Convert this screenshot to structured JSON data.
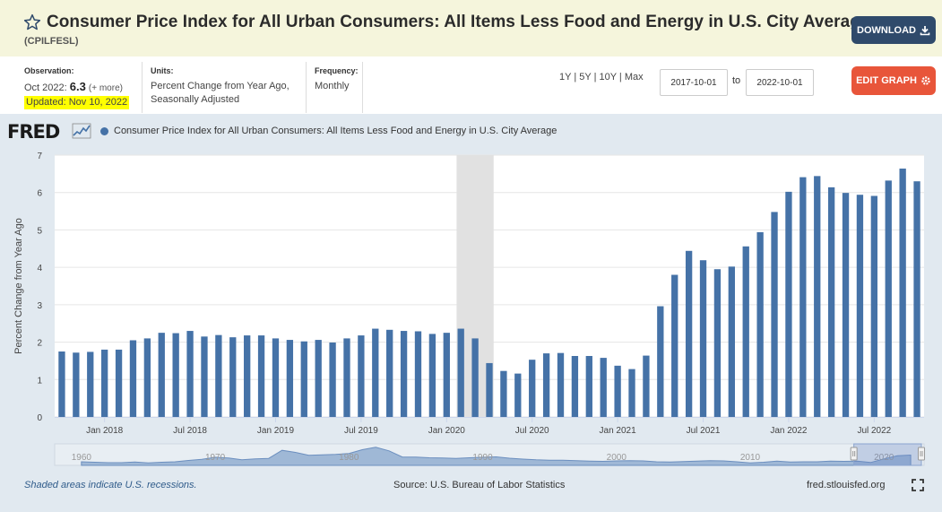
{
  "header": {
    "title": "Consumer Price Index for All Urban Consumers: All Items Less Food and Energy in U.S. City Average",
    "series_id": "(CPILFESL)",
    "download_label": "DOWNLOAD",
    "band_color": "#f5f5dc",
    "download_color": "#2f4a6b"
  },
  "meta": {
    "observation_label": "Observation:",
    "observation_date": "Oct 2022:",
    "observation_value": "6.3",
    "observation_more": "(+ more)",
    "updated": "Updated: Nov 10, 2022",
    "units_label": "Units:",
    "units_line1": "Percent Change from Year Ago,",
    "units_line2": "Seasonally Adjusted",
    "frequency_label": "Frequency:",
    "frequency_value": "Monthly",
    "ranges": [
      "1Y",
      "5Y",
      "10Y",
      "Max"
    ],
    "start_date": "2017-10-01",
    "to_label": "to",
    "end_date": "2022-10-01",
    "edit_label": "EDIT GRAPH",
    "edit_color": "#e8553a"
  },
  "chart_panel": {
    "logo": "FRED",
    "legend_label": "Consumer Price Index for All Urban Consumers: All Items Less Food and Energy in U.S. City Average",
    "recession_note": "Shaded areas indicate U.S. recessions.",
    "source": "Source: U.S. Bureau of Labor Statistics",
    "site": "fred.stlouisfed.org"
  },
  "chart_data": {
    "type": "bar",
    "ylabel": "Percent Change from Year Ago",
    "xlabel": "",
    "ylim": [
      0,
      7
    ],
    "y_ticks": [
      0,
      1,
      2,
      3,
      4,
      5,
      6,
      7
    ],
    "grid": true,
    "bar_color": "#4572a7",
    "categories": [
      "2017-10",
      "2017-11",
      "2017-12",
      "2018-01",
      "2018-02",
      "2018-03",
      "2018-04",
      "2018-05",
      "2018-06",
      "2018-07",
      "2018-08",
      "2018-09",
      "2018-10",
      "2018-11",
      "2018-12",
      "2019-01",
      "2019-02",
      "2019-03",
      "2019-04",
      "2019-05",
      "2019-06",
      "2019-07",
      "2019-08",
      "2019-09",
      "2019-10",
      "2019-11",
      "2019-12",
      "2020-01",
      "2020-02",
      "2020-03",
      "2020-04",
      "2020-05",
      "2020-06",
      "2020-07",
      "2020-08",
      "2020-09",
      "2020-10",
      "2020-11",
      "2020-12",
      "2021-01",
      "2021-02",
      "2021-03",
      "2021-04",
      "2021-05",
      "2021-06",
      "2021-07",
      "2021-08",
      "2021-09",
      "2021-10",
      "2021-11",
      "2021-12",
      "2022-01",
      "2022-02",
      "2022-03",
      "2022-04",
      "2022-05",
      "2022-06",
      "2022-07",
      "2022-08",
      "2022-09",
      "2022-10"
    ],
    "values": [
      1.75,
      1.72,
      1.74,
      1.8,
      1.8,
      2.05,
      2.1,
      2.25,
      2.24,
      2.3,
      2.15,
      2.19,
      2.13,
      2.18,
      2.18,
      2.1,
      2.06,
      2.02,
      2.06,
      1.99,
      2.1,
      2.18,
      2.36,
      2.33,
      2.3,
      2.29,
      2.22,
      2.25,
      2.36,
      2.1,
      1.44,
      1.23,
      1.16,
      1.53,
      1.7,
      1.71,
      1.63,
      1.63,
      1.58,
      1.37,
      1.28,
      1.64,
      2.96,
      3.8,
      4.44,
      4.19,
      3.95,
      4.02,
      4.56,
      4.94,
      5.48,
      6.02,
      6.41,
      6.44,
      6.14,
      5.99,
      5.94,
      5.91,
      6.32,
      6.64,
      6.3
    ],
    "x_tick_labels": [
      "Jan 2018",
      "Jul 2018",
      "Jan 2019",
      "Jul 2019",
      "Jan 2020",
      "Jul 2020",
      "Jan 2021",
      "Jul 2021",
      "Jan 2022",
      "Jul 2022"
    ],
    "x_tick_months": [
      "2018-01",
      "2018-07",
      "2019-01",
      "2019-07",
      "2020-01",
      "2020-07",
      "2021-01",
      "2021-07",
      "2022-01",
      "2022-07"
    ],
    "recession": {
      "start": "2020-02",
      "end": "2020-04"
    },
    "navigator": {
      "year_labels": [
        "1960",
        "1970",
        "1980",
        "1990",
        "2000",
        "2010",
        "2020"
      ],
      "years": [
        1960,
        1970,
        1980,
        1990,
        2000,
        2010,
        2020
      ],
      "year_range": [
        1958,
        2023
      ],
      "selected_range": [
        2017.75,
        2022.8
      ],
      "series": [
        1.8,
        1.5,
        1.2,
        1.2,
        1.6,
        1.0,
        1.5,
        1.8,
        2.7,
        3.5,
        4.8,
        4.3,
        3.2,
        3.8,
        4.1,
        9.5,
        8.1,
        6.1,
        6.4,
        6.8,
        7.4,
        9.9,
        11.5,
        9.1,
        5.0,
        4.9,
        4.5,
        4.3,
        4.1,
        4.5,
        4.8,
        5.1,
        4.2,
        3.6,
        3.1,
        2.9,
        2.8,
        2.6,
        2.3,
        2.1,
        2.4,
        2.6,
        2.4,
        1.8,
        1.7,
        2.0,
        2.3,
        2.5,
        2.4,
        1.8,
        1.0,
        1.5,
        2.2,
        1.7,
        1.8,
        1.8,
        2.2,
        2.1,
        2.3,
        1.3,
        3.7,
        5.8,
        6.3
      ]
    }
  }
}
